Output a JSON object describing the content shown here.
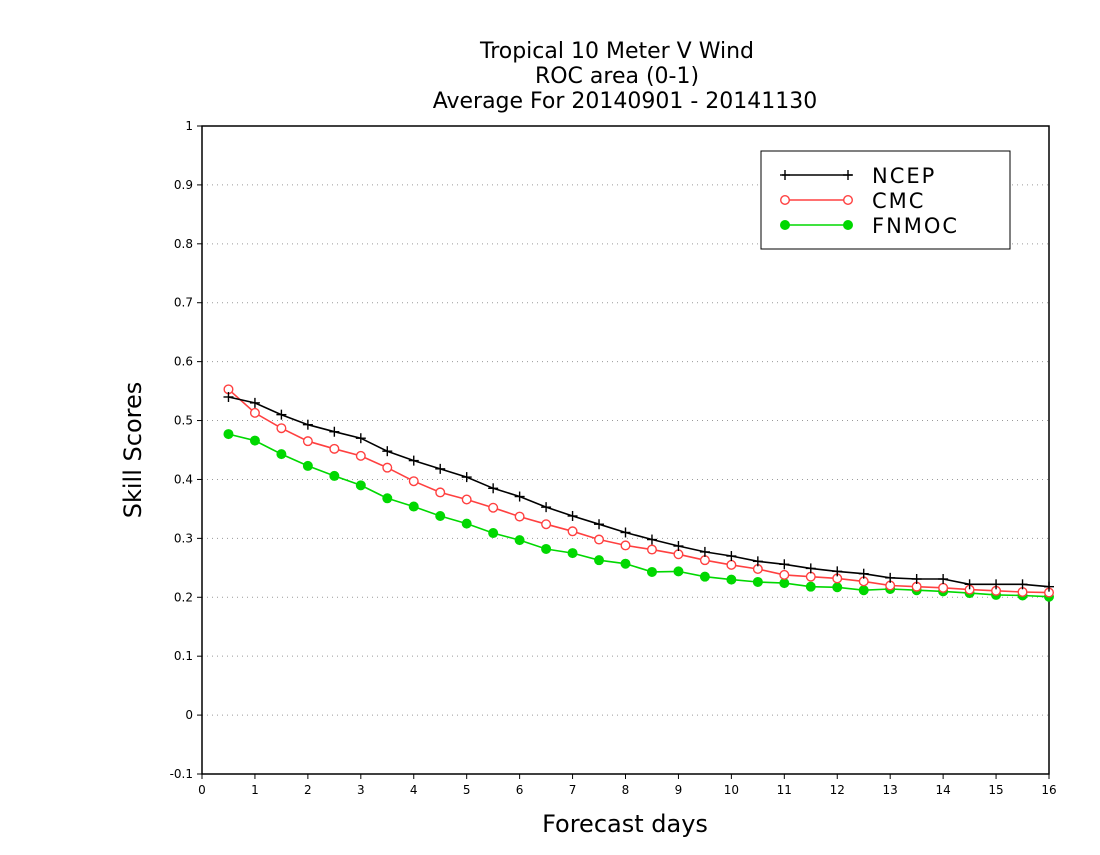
{
  "chart_data": {
    "type": "line",
    "title": [
      "Tropical 10 Meter V Wind",
      "ROC area (0-1)",
      "Average For 20140901 - 20141130"
    ],
    "xlabel": "Forecast days",
    "ylabel": "Skill Scores",
    "xlim": [
      0,
      16
    ],
    "ylim": [
      -0.1,
      1
    ],
    "xticks": [
      0,
      1,
      2,
      3,
      4,
      5,
      6,
      7,
      8,
      9,
      10,
      11,
      12,
      13,
      14,
      15,
      16
    ],
    "yticks": [
      -0.1,
      0,
      0.1,
      0.2,
      0.3,
      0.4,
      0.5,
      0.6,
      0.7,
      0.8,
      0.9,
      1
    ],
    "ytick_labels": [
      "-0.1",
      "0",
      "0.1",
      "0.2",
      "0.3",
      "0.4",
      "0.5",
      "0.6",
      "0.7",
      "0.8",
      "0.9",
      "1"
    ],
    "grid": "horizontal dotted",
    "legend_position": "top-right",
    "x": [
      0.5,
      1,
      1.5,
      2,
      2.5,
      3,
      3.5,
      4,
      4.5,
      5,
      5.5,
      6,
      6.5,
      7,
      7.5,
      8,
      8.5,
      9,
      9.5,
      10,
      10.5,
      11,
      11.5,
      12,
      12.5,
      13,
      13.5,
      14,
      14.5,
      15,
      15.5,
      16
    ],
    "series": [
      {
        "name": "NCEP",
        "color": "#000000",
        "marker": "plus",
        "values": [
          0.54,
          0.53,
          0.51,
          0.493,
          0.481,
          0.47,
          0.448,
          0.432,
          0.418,
          0.404,
          0.385,
          0.371,
          0.353,
          0.338,
          0.324,
          0.31,
          0.298,
          0.287,
          0.277,
          0.27,
          0.261,
          0.256,
          0.249,
          0.244,
          0.24,
          0.233,
          0.231,
          0.231,
          0.222,
          0.222,
          0.222,
          0.218
        ]
      },
      {
        "name": "CMC",
        "color": "#ff4040",
        "marker": "open-circle",
        "values": [
          0.553,
          0.513,
          0.487,
          0.465,
          0.452,
          0.44,
          0.42,
          0.397,
          0.378,
          0.366,
          0.352,
          0.337,
          0.324,
          0.312,
          0.298,
          0.288,
          0.281,
          0.273,
          0.263,
          0.255,
          0.248,
          0.238,
          0.235,
          0.232,
          0.227,
          0.22,
          0.218,
          0.216,
          0.213,
          0.211,
          0.209,
          0.208
        ]
      },
      {
        "name": "FNMOC",
        "color": "#00d800",
        "marker": "filled-circle",
        "values": [
          0.477,
          0.466,
          0.443,
          0.423,
          0.406,
          0.39,
          0.368,
          0.354,
          0.338,
          0.325,
          0.309,
          0.297,
          0.282,
          0.275,
          0.263,
          0.257,
          0.243,
          0.244,
          0.235,
          0.23,
          0.226,
          0.224,
          0.218,
          0.217,
          0.212,
          0.214,
          0.212,
          0.21,
          0.207,
          0.204,
          0.203,
          0.201
        ]
      }
    ]
  }
}
